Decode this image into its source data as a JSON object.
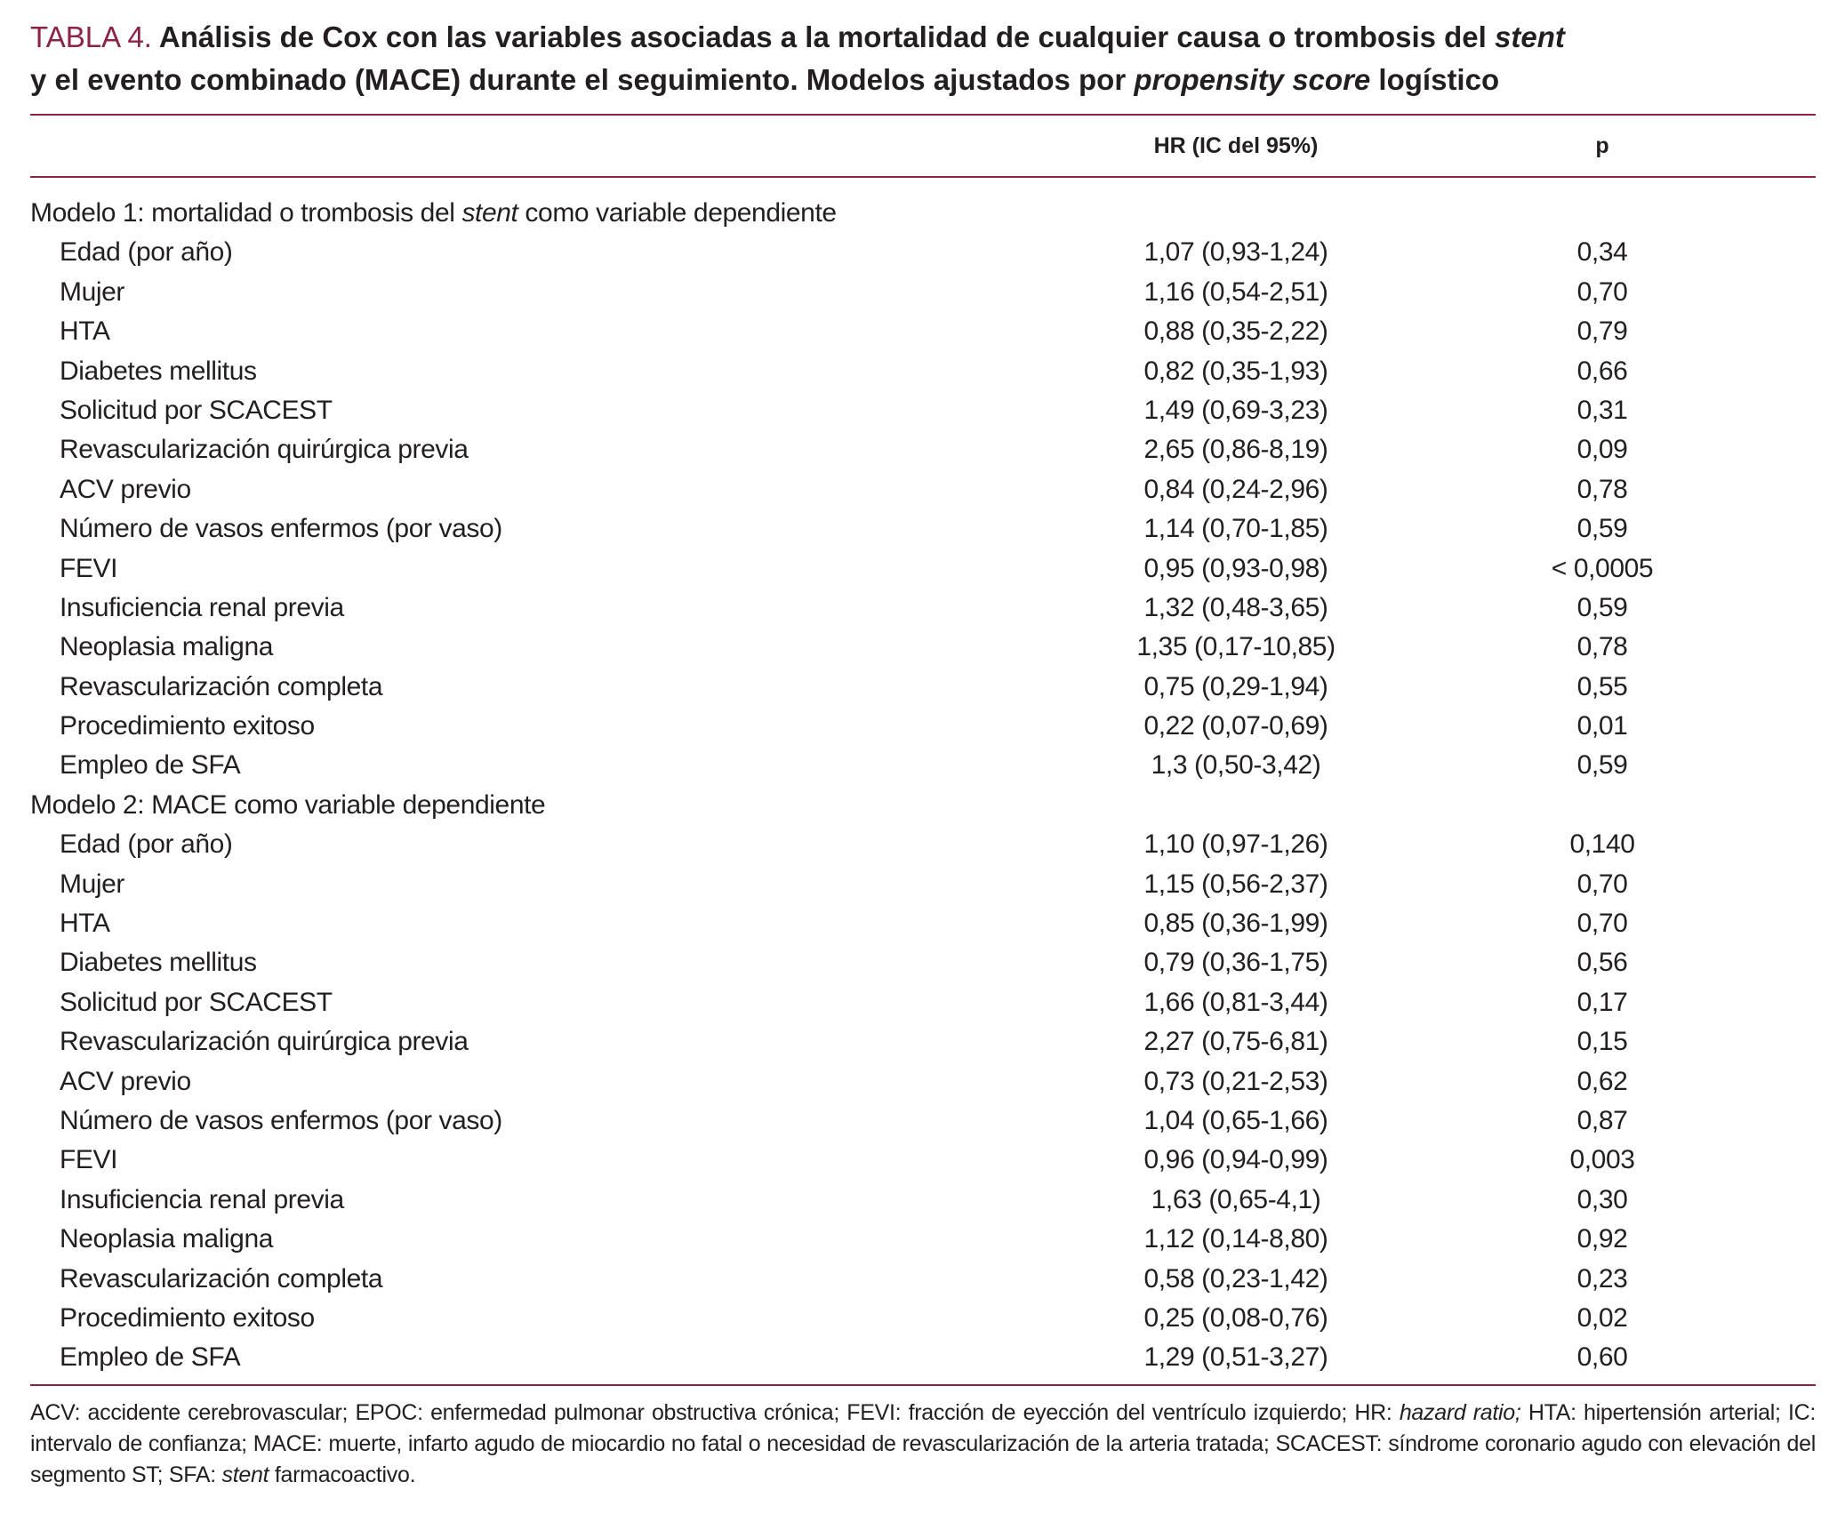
{
  "title": {
    "label": "TABLA 4.",
    "segments": [
      "Análisis de Cox con las variables asociadas a la mortalidad de cualquier causa o trombosis del ",
      "stent",
      " y el evento combinado (MACE) durante el seguimiento. Modelos ajustados por ",
      "propensity score",
      " logístico"
    ]
  },
  "table": {
    "columns": [
      "HR (IC del 95%)",
      "p"
    ],
    "sections": [
      {
        "label": [
          "Modelo 1: mortalidad o trombosis del ",
          "stent",
          " como variable dependiente"
        ],
        "rows": [
          [
            "Edad (por año)",
            "1,07 (0,93-1,24)",
            "0,34"
          ],
          [
            "Mujer",
            "1,16 (0,54-2,51)",
            "0,70"
          ],
          [
            "HTA",
            "0,88 (0,35-2,22)",
            "0,79"
          ],
          [
            "Diabetes mellitus",
            "0,82 (0,35-1,93)",
            "0,66"
          ],
          [
            "Solicitud por SCACEST",
            "1,49 (0,69-3,23)",
            "0,31"
          ],
          [
            "Revascularización quirúrgica previa",
            "2,65 (0,86-8,19)",
            "0,09"
          ],
          [
            "ACV previo",
            "0,84 (0,24-2,96)",
            "0,78"
          ],
          [
            "Número de vasos enfermos (por vaso)",
            "1,14 (0,70-1,85)",
            "0,59"
          ],
          [
            "FEVI",
            "0,95 (0,93-0,98)",
            "< 0,0005"
          ],
          [
            "Insuficiencia renal previa",
            "1,32 (0,48-3,65)",
            "0,59"
          ],
          [
            "Neoplasia maligna",
            "1,35 (0,17-10,85)",
            "0,78"
          ],
          [
            "Revascularización completa",
            "0,75 (0,29-1,94)",
            "0,55"
          ],
          [
            "Procedimiento exitoso",
            "0,22 (0,07-0,69)",
            "0,01"
          ],
          [
            "Empleo de SFA",
            "1,3 (0,50-3,42)",
            "0,59"
          ]
        ]
      },
      {
        "label": [
          "Modelo 2: MACE como variable dependiente"
        ],
        "rows": [
          [
            "Edad (por año)",
            "1,10 (0,97-1,26)",
            "0,140"
          ],
          [
            "Mujer",
            "1,15 (0,56-2,37)",
            "0,70"
          ],
          [
            "HTA",
            "0,85 (0,36-1,99)",
            "0,70"
          ],
          [
            "Diabetes mellitus",
            "0,79 (0,36-1,75)",
            "0,56"
          ],
          [
            "Solicitud por SCACEST",
            "1,66 (0,81-3,44)",
            "0,17"
          ],
          [
            "Revascularización quirúrgica previa",
            "2,27 (0,75-6,81)",
            "0,15"
          ],
          [
            "ACV previo",
            "0,73 (0,21-2,53)",
            "0,62"
          ],
          [
            "Número de vasos enfermos (por vaso)",
            "1,04 (0,65-1,66)",
            "0,87"
          ],
          [
            "FEVI",
            "0,96 (0,94-0,99)",
            "0,003"
          ],
          [
            "Insuficiencia renal previa",
            "1,63 (0,65-4,1)",
            "0,30"
          ],
          [
            "Neoplasia maligna",
            "1,12 (0,14-8,80)",
            "0,92"
          ],
          [
            "Revascularización completa",
            "0,58 (0,23-1,42)",
            "0,23"
          ],
          [
            "Procedimiento exitoso",
            "0,25 (0,08-0,76)",
            "0,02"
          ],
          [
            "Empleo de SFA",
            "1,29 (0,51-3,27)",
            "0,60"
          ]
        ]
      }
    ]
  },
  "footnote": [
    "ACV: accidente cerebrovascular; EPOC: enfermedad pulmonar obstructiva crónica; FEVI: fracción de eyección del ventrículo izquierdo; HR: ",
    "hazard ratio;",
    " HTA: hipertensión arterial; IC: intervalo de confianza; MACE: muerte, infarto agudo de miocardio no fatal o necesidad de revascularización de la arteria tratada; SCACEST: síndrome coronario agudo con elevación del segmento ST; SFA: ",
    "stent",
    " farmacoactivo."
  ]
}
